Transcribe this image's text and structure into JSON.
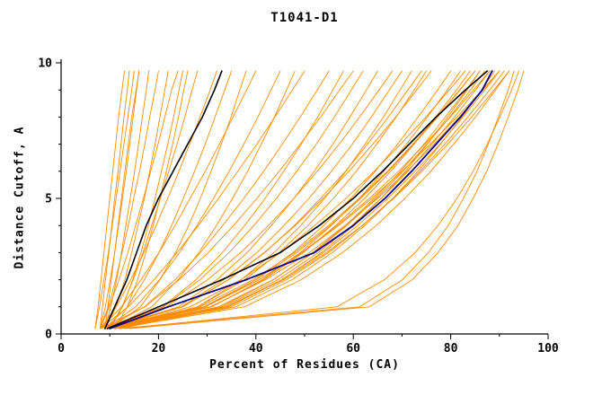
{
  "title": "T1041-D1",
  "chart_data": {
    "type": "line",
    "title": "T1041-D1",
    "xlabel": "Percent of Residues (CA)",
    "ylabel": "Distance Cutoff, A",
    "xlim": [
      0,
      100
    ],
    "ylim": [
      0,
      10
    ],
    "xticks": [
      0,
      20,
      40,
      60,
      80,
      100
    ],
    "yticks": [
      0,
      5,
      10
    ],
    "x_minor_step": 10,
    "y_minor_step": 1,
    "grid": false,
    "legend": "none",
    "colors": {
      "orange": "#ff8c00",
      "black": "#000000",
      "blue": "#00008b"
    },
    "cutoffs": [
      0.2,
      1,
      2,
      3,
      4,
      5,
      6,
      7,
      8,
      9,
      9.7
    ],
    "series": [
      {
        "name": "orange-01",
        "color": "orange",
        "x": [
          8,
          8.5,
          9.1,
          9.8,
          10.4,
          11,
          11.7,
          12.3,
          12.9,
          13.6,
          14
        ]
      },
      {
        "name": "orange-02",
        "color": "orange",
        "x": [
          8,
          9.1,
          10.1,
          11,
          11.8,
          12.6,
          13.4,
          14.1,
          14.8,
          15.5,
          16
        ]
      },
      {
        "name": "orange-03",
        "color": "orange",
        "x": [
          9,
          10.2,
          11.4,
          12.4,
          13.3,
          14.2,
          15.1,
          15.9,
          16.7,
          17.5,
          18
        ]
      },
      {
        "name": "orange-04",
        "color": "orange",
        "x": [
          7,
          7.9,
          8.8,
          9.7,
          10.5,
          11.3,
          12.1,
          12.9,
          13.7,
          14.5,
          15
        ]
      },
      {
        "name": "orange-05",
        "color": "orange",
        "x": [
          8,
          9.7,
          11.2,
          12.5,
          13.8,
          14.9,
          16.1,
          17.2,
          18.2,
          19.3,
          20
        ]
      },
      {
        "name": "orange-06",
        "color": "orange",
        "x": [
          9,
          11.3,
          13.1,
          14.5,
          15.8,
          17.1,
          18.2,
          19.3,
          20.3,
          21.3,
          22
        ]
      },
      {
        "name": "orange-07",
        "color": "orange",
        "x": [
          10,
          12.6,
          14.7,
          16.4,
          17.9,
          19.3,
          20.6,
          21.9,
          23.1,
          24.2,
          25
        ]
      },
      {
        "name": "orange-08",
        "color": "orange",
        "x": [
          8,
          9.9,
          11.9,
          13.7,
          15.3,
          16.9,
          18.4,
          19.9,
          21.3,
          22.7,
          24
        ]
      },
      {
        "name": "orange-09",
        "color": "orange",
        "x": [
          7,
          7.6,
          8.2,
          8.8,
          9.4,
          10,
          10.6,
          11.2,
          11.8,
          12.5,
          13
        ]
      },
      {
        "name": "orange-10",
        "color": "orange",
        "x": [
          10,
          12.5,
          14.8,
          16.8,
          18.6,
          20.4,
          22.1,
          23.8,
          25.4,
          26.9,
          28
        ]
      },
      {
        "name": "orange-11",
        "color": "orange",
        "x": [
          9,
          9.6,
          10.3,
          11,
          11.7,
          12.4,
          13.1,
          13.8,
          14.5,
          15.4,
          16
        ]
      },
      {
        "name": "orange-12",
        "color": "orange",
        "x": [
          11,
          13.6,
          15.7,
          17.4,
          18.9,
          20.3,
          21.6,
          22.9,
          24.1,
          25.2,
          26
        ]
      },
      {
        "name": "orange-13",
        "color": "orange",
        "x": [
          8,
          11.3,
          14.3,
          17,
          19.5,
          21.9,
          24.2,
          26.4,
          28.5,
          30.6,
          32
        ]
      },
      {
        "name": "orange-14",
        "color": "orange",
        "x": [
          9,
          13.6,
          17.1,
          20.1,
          22.7,
          25.1,
          27.4,
          29.6,
          31.6,
          33.6,
          35
        ]
      },
      {
        "name": "orange-15",
        "color": "orange",
        "x": [
          10,
          16.3,
          20.3,
          23.5,
          26.2,
          28.6,
          30.8,
          32.9,
          34.9,
          36.7,
          38
        ]
      },
      {
        "name": "orange-16",
        "color": "orange",
        "x": [
          8,
          12.4,
          16.4,
          20.1,
          23.4,
          26.5,
          29.6,
          32.5,
          35.3,
          38.1,
          40
        ]
      },
      {
        "name": "orange-17",
        "color": "orange",
        "x": [
          9,
          15.3,
          20.2,
          24.3,
          27.9,
          31.3,
          34.5,
          37.5,
          40.4,
          43.1,
          45
        ]
      },
      {
        "name": "orange-18",
        "color": "orange",
        "x": [
          10,
          18.6,
          24,
          28.3,
          31.9,
          35.2,
          38.3,
          41.1,
          43.8,
          46.3,
          48
        ]
      },
      {
        "name": "orange-19",
        "color": "orange",
        "x": [
          8,
          13.8,
          19.1,
          23.8,
          28.2,
          32.3,
          36.3,
          40.2,
          43.9,
          47.5,
          50
        ]
      },
      {
        "name": "orange-20",
        "color": "orange",
        "x": [
          9,
          17.1,
          23.4,
          28.6,
          33.2,
          37.5,
          41.6,
          45.4,
          49.1,
          52.6,
          55
        ]
      },
      {
        "name": "orange-21",
        "color": "orange",
        "x": [
          10,
          20.8,
          27.7,
          33.1,
          37.7,
          41.9,
          45.7,
          49.3,
          52.7,
          55.8,
          58
        ]
      },
      {
        "name": "orange-22",
        "color": "orange",
        "x": [
          8,
          17.2,
          24.2,
          30.2,
          35.4,
          40.2,
          44.8,
          49.1,
          53.3,
          57.2,
          60
        ]
      },
      {
        "name": "orange-23",
        "color": "orange",
        "x": [
          9,
          21,
          28.5,
          34.5,
          39.6,
          44.2,
          48.4,
          52.4,
          56.1,
          59.6,
          62
        ]
      },
      {
        "name": "orange-24",
        "color": "orange",
        "x": [
          10,
          24.1,
          32,
          38.2,
          43.2,
          47.8,
          52,
          55.8,
          59.3,
          62.7,
          65
        ]
      },
      {
        "name": "orange-25",
        "color": "orange",
        "x": [
          8,
          21.6,
          30.1,
          36.9,
          42.6,
          47.8,
          52.6,
          57.1,
          61.3,
          65.3,
          68
        ]
      },
      {
        "name": "orange-26",
        "color": "orange",
        "x": [
          9,
          24.7,
          33.4,
          40.2,
          45.8,
          50.9,
          55.5,
          59.8,
          63.7,
          67.4,
          70
        ]
      },
      {
        "name": "orange-27",
        "color": "orange",
        "x": [
          10,
          28,
          37,
          43.7,
          49.2,
          54.1,
          58.5,
          62.4,
          66.2,
          69.6,
          72
        ]
      },
      {
        "name": "orange-28",
        "color": "orange",
        "x": [
          8,
          25,
          34.4,
          41.8,
          47.9,
          53.3,
          58.4,
          62.9,
          67.2,
          71.2,
          74
        ]
      },
      {
        "name": "orange-29",
        "color": "orange",
        "x": [
          9,
          28.1,
          37.7,
          44.8,
          50.7,
          55.9,
          60.6,
          64.8,
          68.8,
          72.5,
          75
        ]
      },
      {
        "name": "orange-30",
        "color": "orange",
        "x": [
          10,
          24.9,
          34.3,
          41.7,
          48.1,
          53.8,
          59.1,
          64,
          68.7,
          73,
          76
        ]
      },
      {
        "name": "orange-31",
        "color": "orange",
        "x": [
          9,
          29.6,
          39.9,
          47.6,
          53.9,
          59.5,
          64.5,
          69.1,
          73.3,
          77.3,
          80
        ]
      },
      {
        "name": "orange-32",
        "color": "orange",
        "x": [
          10,
          30.9,
          41.3,
          49.1,
          55.5,
          61.2,
          66.3,
          70.9,
          75.2,
          79.3,
          82
        ]
      },
      {
        "name": "orange-33",
        "color": "orange",
        "x": [
          9,
          30.8,
          41.6,
          49.7,
          56.4,
          62.3,
          67.7,
          72.5,
          76.9,
          81.2,
          84
        ]
      },
      {
        "name": "orange-34",
        "color": "orange",
        "x": [
          10,
          29.3,
          40,
          48.4,
          55.3,
          61.5,
          67.2,
          72.4,
          77.3,
          81.9,
          85
        ]
      },
      {
        "name": "orange-35",
        "color": "orange",
        "x": [
          11,
          32.8,
          43.6,
          51.7,
          58.4,
          64.3,
          69.7,
          74.5,
          78.9,
          83.2,
          86
        ]
      },
      {
        "name": "orange-36",
        "color": "orange",
        "x": [
          9,
          34.3,
          45.4,
          53.5,
          60.1,
          65.7,
          70.7,
          75.2,
          79.4,
          83.4,
          86
        ]
      },
      {
        "name": "orange-37",
        "color": "orange",
        "x": [
          10,
          32.3,
          43.5,
          51.8,
          58.7,
          64.7,
          70.2,
          75.1,
          79.8,
          84.1,
          87
        ]
      },
      {
        "name": "orange-38",
        "color": "orange",
        "x": [
          11,
          33.3,
          44.5,
          52.8,
          59.7,
          65.7,
          71.2,
          76.1,
          80.8,
          85.1,
          88
        ]
      },
      {
        "name": "orange-39",
        "color": "orange",
        "x": [
          9,
          29.3,
          40.6,
          49.4,
          56.7,
          63.3,
          69.3,
          74.7,
          79.9,
          84.7,
          88
        ]
      },
      {
        "name": "orange-40",
        "color": "orange",
        "x": [
          10,
          35.9,
          47.4,
          55.7,
          62.4,
          68.1,
          73.3,
          77.9,
          82.3,
          86.3,
          89
        ]
      },
      {
        "name": "orange-41",
        "color": "orange",
        "x": [
          11,
          33.9,
          45.3,
          53.9,
          60.9,
          67.1,
          72.7,
          77.8,
          82.5,
          87,
          90
        ]
      },
      {
        "name": "orange-42",
        "color": "orange",
        "x": [
          10,
          30.6,
          42,
          51,
          58.3,
          65,
          71,
          76.6,
          81.8,
          86.6,
          90
        ]
      },
      {
        "name": "orange-43",
        "color": "orange",
        "x": [
          12,
          34.9,
          46.3,
          54.9,
          61.9,
          68.1,
          73.7,
          78.8,
          83.5,
          88,
          91
        ]
      },
      {
        "name": "orange-44",
        "color": "orange",
        "x": [
          10,
          33.8,
          45.7,
          54.5,
          61.8,
          68.3,
          74.1,
          79.4,
          84.3,
          88.9,
          92
        ]
      },
      {
        "name": "orange-45",
        "color": "orange",
        "x": [
          11,
          37.6,
          49.3,
          57.8,
          64.7,
          70.6,
          75.9,
          80.6,
          85.1,
          89.2,
          92
        ]
      },
      {
        "name": "orange-46",
        "color": "orange",
        "x": [
          12,
          29.6,
          40.7,
          49.5,
          57,
          63.8,
          70,
          75.8,
          81.3,
          86.5,
          90
        ]
      },
      {
        "name": "orange-47",
        "color": "orange",
        "x": [
          9,
          28.5,
          39.4,
          47.9,
          54.9,
          61.2,
          67,
          72.2,
          77.2,
          81.8,
          85
        ]
      },
      {
        "name": "orange-48",
        "color": "orange",
        "x": [
          10,
          26.5,
          36.9,
          45.1,
          52.1,
          58.5,
          64.3,
          69.7,
          74.9,
          79.7,
          83
        ]
      },
      {
        "name": "orange-49",
        "color": "orange",
        "x": [
          12,
          61.3,
          70.1,
          75.4,
          79.5,
          82.6,
          85.4,
          87.7,
          89.8,
          91.8,
          93
        ]
      },
      {
        "name": "orange-50",
        "color": "orange",
        "x": [
          14,
          63.3,
          72.1,
          77.4,
          81.5,
          84.6,
          87.4,
          89.7,
          91.8,
          93.8,
          95
        ]
      },
      {
        "name": "orange-51",
        "color": "orange",
        "x": [
          13,
          56.6,
          66.4,
          72.7,
          77.4,
          81.3,
          84.6,
          87.5,
          90.1,
          92.5,
          94
        ]
      },
      {
        "name": "black-left",
        "color": "black",
        "x": [
          9,
          11,
          13.5,
          15.5,
          17.5,
          20,
          23,
          26,
          29,
          31.5,
          33
        ]
      },
      {
        "name": "black-right",
        "color": "black",
        "x": [
          9.5,
          20,
          33,
          45,
          53,
          60,
          66,
          71.5,
          77,
          83,
          87.5
        ]
      },
      {
        "name": "blue-model",
        "color": "blue",
        "x": [
          10,
          22,
          38,
          52,
          60,
          66.5,
          72,
          77,
          82,
          86.5,
          88.5
        ]
      }
    ]
  }
}
